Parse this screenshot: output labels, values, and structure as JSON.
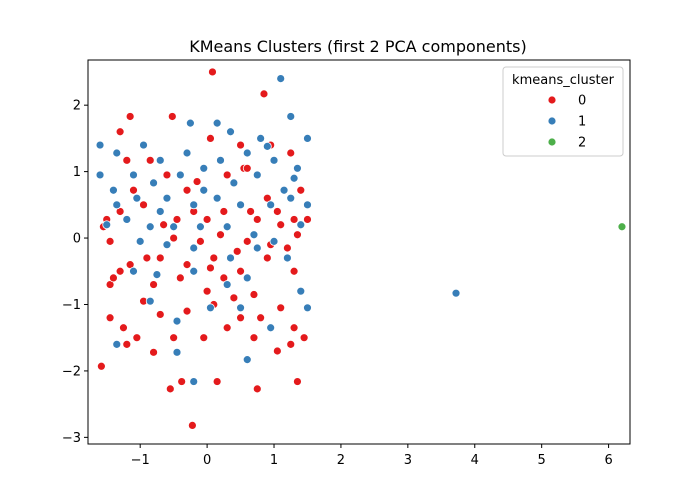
{
  "chart_data": {
    "type": "scatter",
    "title": "KMeans Clusters (first 2 PCA components)",
    "xlabel": "",
    "ylabel": "",
    "xlim": [
      -1.78,
      6.32
    ],
    "ylim": [
      -3.1,
      2.68
    ],
    "xticks": [
      -1,
      0,
      1,
      2,
      3,
      4,
      5,
      6
    ],
    "xtick_labels": [
      "−1",
      "0",
      "1",
      "2",
      "3",
      "4",
      "5",
      "6"
    ],
    "yticks": [
      -3,
      -2,
      -1,
      0,
      1,
      2
    ],
    "ytick_labels": [
      "−3",
      "−2",
      "−1",
      "0",
      "1",
      "2"
    ],
    "grid": false,
    "legend": {
      "title": "kmeans_cluster",
      "placement": "top-right"
    },
    "series": [
      {
        "name": "0",
        "color": "#e41a1c",
        "points": [
          [
            0.08,
            2.5
          ],
          [
            0.85,
            2.17
          ],
          [
            -1.15,
            1.83
          ],
          [
            -0.52,
            1.83
          ],
          [
            -1.3,
            1.6
          ],
          [
            -1.2,
            1.17
          ],
          [
            -0.85,
            1.17
          ],
          [
            0.05,
            1.5
          ],
          [
            0.5,
            1.4
          ],
          [
            0.95,
            1.4
          ],
          [
            1.25,
            1.28
          ],
          [
            -1.1,
            0.72
          ],
          [
            -0.6,
            0.95
          ],
          [
            -0.3,
            0.72
          ],
          [
            0.3,
            0.95
          ],
          [
            0.55,
            1.05
          ],
          [
            0.9,
            0.6
          ],
          [
            1.4,
            0.72
          ],
          [
            -1.5,
            0.28
          ],
          [
            -1.3,
            0.4
          ],
          [
            -0.95,
            0.5
          ],
          [
            -0.45,
            0.28
          ],
          [
            0.0,
            0.28
          ],
          [
            0.25,
            0.4
          ],
          [
            0.75,
            0.28
          ],
          [
            1.05,
            0.4
          ],
          [
            1.3,
            0.28
          ],
          [
            1.5,
            0.28
          ],
          [
            -1.55,
            0.17
          ],
          [
            -1.45,
            -0.05
          ],
          [
            -1.0,
            -0.05
          ],
          [
            -0.5,
            0.0
          ],
          [
            -0.1,
            -0.05
          ],
          [
            0.2,
            0.05
          ],
          [
            0.6,
            -0.05
          ],
          [
            0.95,
            -0.1
          ],
          [
            1.35,
            0.05
          ],
          [
            -1.3,
            -0.5
          ],
          [
            -1.15,
            -0.4
          ],
          [
            -0.7,
            -0.3
          ],
          [
            -0.3,
            -0.4
          ],
          [
            0.1,
            -0.3
          ],
          [
            0.5,
            -0.5
          ],
          [
            0.9,
            -0.3
          ],
          [
            1.2,
            -0.15
          ],
          [
            -1.45,
            -0.7
          ],
          [
            -0.8,
            -0.7
          ],
          [
            -0.4,
            -0.6
          ],
          [
            0.0,
            -0.8
          ],
          [
            0.4,
            -0.9
          ],
          [
            0.7,
            -0.85
          ],
          [
            1.3,
            -0.5
          ],
          [
            -1.45,
            -1.2
          ],
          [
            -1.25,
            -1.35
          ],
          [
            -0.95,
            -0.95
          ],
          [
            -0.7,
            -1.15
          ],
          [
            -0.3,
            -1.1
          ],
          [
            0.1,
            -1.0
          ],
          [
            0.5,
            -1.2
          ],
          [
            0.8,
            -1.2
          ],
          [
            1.1,
            -1.05
          ],
          [
            1.3,
            -1.35
          ],
          [
            -1.2,
            -1.6
          ],
          [
            -1.05,
            -1.5
          ],
          [
            -0.5,
            -1.5
          ],
          [
            -0.05,
            -1.5
          ],
          [
            0.3,
            -1.35
          ],
          [
            0.7,
            -1.5
          ],
          [
            1.05,
            -1.7
          ],
          [
            1.25,
            -1.6
          ],
          [
            -1.58,
            -1.93
          ],
          [
            -0.8,
            -1.72
          ],
          [
            -0.55,
            -2.27
          ],
          [
            -0.38,
            -2.16
          ],
          [
            -0.22,
            -2.82
          ],
          [
            0.15,
            -2.16
          ],
          [
            0.75,
            -2.27
          ],
          [
            1.35,
            -2.16
          ],
          [
            -0.15,
            0.85
          ],
          [
            0.65,
            0.4
          ],
          [
            -0.9,
            -0.3
          ],
          [
            0.25,
            -0.6
          ],
          [
            1.1,
            0.2
          ],
          [
            -0.2,
            0.4
          ],
          [
            0.45,
            -0.2
          ],
          [
            1.45,
            -1.5
          ],
          [
            -1.4,
            -0.6
          ],
          [
            0.6,
            1.05
          ],
          [
            -0.65,
            0.2
          ],
          [
            0.05,
            -0.45
          ]
        ]
      },
      {
        "name": "1",
        "color": "#377eb8",
        "points": [
          [
            1.1,
            2.4
          ],
          [
            1.25,
            1.83
          ],
          [
            -1.6,
            1.4
          ],
          [
            -1.35,
            1.28
          ],
          [
            -0.25,
            1.73
          ],
          [
            0.15,
            1.73
          ],
          [
            0.35,
            1.6
          ],
          [
            0.8,
            1.5
          ],
          [
            1.5,
            1.5
          ],
          [
            -0.95,
            1.4
          ],
          [
            -0.7,
            1.17
          ],
          [
            -0.3,
            1.28
          ],
          [
            0.2,
            1.17
          ],
          [
            0.6,
            1.28
          ],
          [
            1.0,
            1.17
          ],
          [
            1.35,
            1.05
          ],
          [
            -1.6,
            0.95
          ],
          [
            -1.4,
            0.72
          ],
          [
            -1.1,
            0.95
          ],
          [
            -0.8,
            0.83
          ],
          [
            -0.4,
            0.95
          ],
          [
            -0.05,
            0.72
          ],
          [
            0.4,
            0.83
          ],
          [
            0.75,
            0.95
          ],
          [
            1.15,
            0.72
          ],
          [
            1.5,
            0.5
          ],
          [
            -1.35,
            0.5
          ],
          [
            -1.05,
            0.6
          ],
          [
            -0.6,
            0.6
          ],
          [
            -0.2,
            0.5
          ],
          [
            0.15,
            0.6
          ],
          [
            0.5,
            0.5
          ],
          [
            0.95,
            0.5
          ],
          [
            1.25,
            0.6
          ],
          [
            -1.5,
            0.2
          ],
          [
            -1.2,
            0.28
          ],
          [
            -0.85,
            0.17
          ],
          [
            -0.5,
            0.17
          ],
          [
            -0.1,
            0.17
          ],
          [
            0.3,
            0.17
          ],
          [
            0.7,
            0.05
          ],
          [
            1.0,
            -0.05
          ],
          [
            1.4,
            0.2
          ],
          [
            -1.0,
            -0.05
          ],
          [
            -0.6,
            -0.1
          ],
          [
            -0.2,
            -0.15
          ],
          [
            0.35,
            -0.3
          ],
          [
            0.75,
            -0.15
          ],
          [
            1.2,
            -0.3
          ],
          [
            -1.1,
            -0.5
          ],
          [
            -0.75,
            -0.55
          ],
          [
            -0.2,
            -0.5
          ],
          [
            0.3,
            -0.7
          ],
          [
            0.6,
            -0.6
          ],
          [
            1.4,
            -0.8
          ],
          [
            -0.85,
            -0.95
          ],
          [
            -0.45,
            -1.25
          ],
          [
            0.05,
            -1.05
          ],
          [
            0.5,
            -1.05
          ],
          [
            0.95,
            -1.35
          ],
          [
            1.5,
            -1.05
          ],
          [
            -1.35,
            -1.6
          ],
          [
            -0.45,
            -1.72
          ],
          [
            0.6,
            -1.83
          ],
          [
            -0.2,
            -2.16
          ],
          [
            3.72,
            -0.83
          ],
          [
            0.9,
            1.38
          ],
          [
            -0.05,
            1.05
          ],
          [
            1.3,
            0.9
          ],
          [
            -0.7,
            0.4
          ]
        ]
      },
      {
        "name": "2",
        "color": "#4daf4a",
        "points": [
          [
            6.2,
            0.17
          ]
        ]
      }
    ]
  }
}
